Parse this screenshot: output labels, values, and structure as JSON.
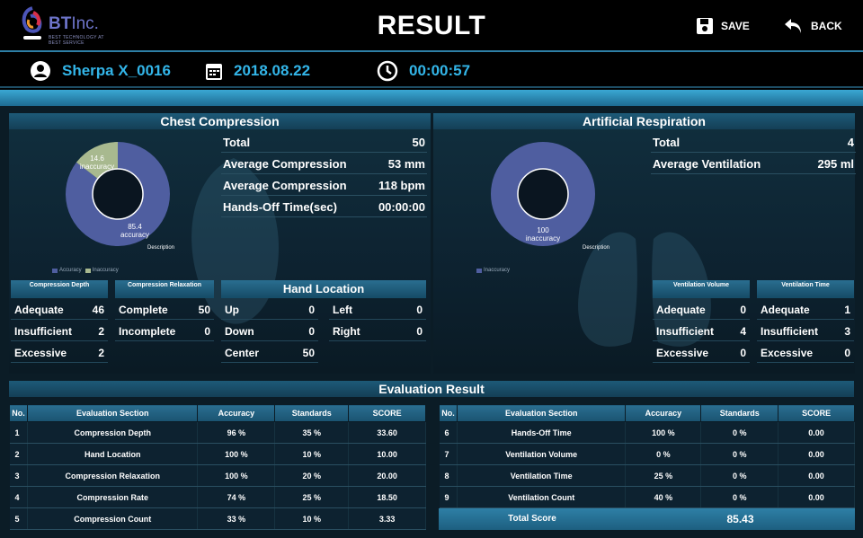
{
  "header": {
    "logo": {
      "name_bold": "BT",
      "name_rest": "Inc.",
      "tagline": "BEST TECHNOLOGY AT BEST SERVICE"
    },
    "title": "RESULT",
    "save_label": "SAVE",
    "back_label": "BACK",
    "icons": [
      "save-icon",
      "back-arrow-icon"
    ]
  },
  "info": {
    "user": "Sherpa X_0016",
    "date": "2018.08.22",
    "time": "00:00:57",
    "icons": [
      "user-icon",
      "calendar-icon",
      "clock-icon"
    ]
  },
  "chest": {
    "title": "Chest Compression",
    "stats": [
      {
        "label": "Total",
        "value": "50"
      },
      {
        "label": "Average Compression",
        "value": "53 mm"
      },
      {
        "label": "Average Compression",
        "value": "118 bpm"
      },
      {
        "label": "Hands-Off Time(sec)",
        "value": "00:00:00"
      }
    ],
    "chart_data": {
      "type": "pie",
      "categories": [
        "accuracy",
        "inaccuracy"
      ],
      "values": [
        85.4,
        14.6
      ],
      "colors": [
        "#4f5ea0",
        "#a8b98f"
      ],
      "legend": [
        "Accuracy",
        "Inaccuracy"
      ],
      "description": "Description"
    },
    "depth": {
      "title": "Compression Depth",
      "rows": [
        {
          "label": "Adequate",
          "value": "46"
        },
        {
          "label": "Insufficient",
          "value": "2"
        },
        {
          "label": "Excessive",
          "value": "2"
        }
      ]
    },
    "relaxation": {
      "title": "Compression Relaxation",
      "rows": [
        {
          "label": "Complete",
          "value": "50"
        },
        {
          "label": "Incomplete",
          "value": "0"
        }
      ]
    },
    "hand": {
      "title": "Hand Location",
      "rows": [
        {
          "label": "Up",
          "value": "0"
        },
        {
          "label": "Left",
          "value": "0"
        },
        {
          "label": "Down",
          "value": "0"
        },
        {
          "label": "Right",
          "value": "0"
        },
        {
          "label": "Center",
          "value": "50"
        }
      ]
    }
  },
  "resp": {
    "title": "Artificial Respiration",
    "stats": [
      {
        "label": "Total",
        "value": "4"
      },
      {
        "label": "Average Ventilation",
        "value": "295 ml"
      }
    ],
    "chart_data": {
      "type": "pie",
      "categories": [
        "inaccuracy"
      ],
      "values": [
        100
      ],
      "colors": [
        "#4f5ea0"
      ],
      "legend": [
        "Inaccuracy"
      ],
      "description": "Description"
    },
    "volume": {
      "title": "Ventilation Volume",
      "rows": [
        {
          "label": "Adequate",
          "value": "0"
        },
        {
          "label": "Insufficient",
          "value": "4"
        },
        {
          "label": "Excessive",
          "value": "0"
        }
      ]
    },
    "vtime": {
      "title": "Ventilation Time",
      "rows": [
        {
          "label": "Adequate",
          "value": "1"
        },
        {
          "label": "Insufficient",
          "value": "3"
        },
        {
          "label": "Excessive",
          "value": "0"
        }
      ]
    }
  },
  "eval": {
    "title": "Evaluation Result",
    "columns": [
      "No.",
      "Evaluation Section",
      "Accuracy",
      "Standards",
      "SCORE"
    ],
    "left_rows": [
      [
        "1",
        "Compression Depth",
        "96 %",
        "35 %",
        "33.60"
      ],
      [
        "2",
        "Hand Location",
        "100 %",
        "10 %",
        "10.00"
      ],
      [
        "3",
        "Compression Relaxation",
        "100 %",
        "20 %",
        "20.00"
      ],
      [
        "4",
        "Compression Rate",
        "74 %",
        "25 %",
        "18.50"
      ],
      [
        "5",
        "Compression Count",
        "33 %",
        "10 %",
        "3.33"
      ]
    ],
    "right_rows": [
      [
        "6",
        "Hands-Off Time",
        "100 %",
        "0 %",
        "0.00"
      ],
      [
        "7",
        "Ventilation Volume",
        "0 %",
        "0 %",
        "0.00"
      ],
      [
        "8",
        "Ventilation Time",
        "25 %",
        "0 %",
        "0.00"
      ],
      [
        "9",
        "Ventilation Count",
        "40 %",
        "0 %",
        "0.00"
      ]
    ],
    "total_label": "Total Score",
    "total_value": "85.43"
  }
}
